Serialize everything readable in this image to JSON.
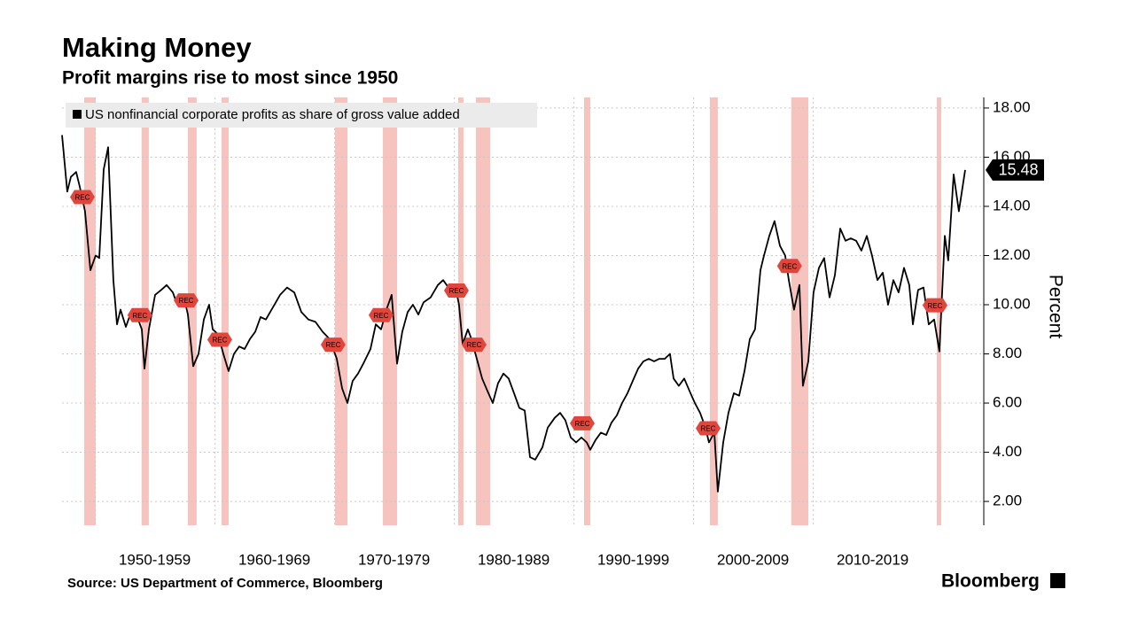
{
  "chart_data": {
    "type": "line",
    "title": "Making Money",
    "subtitle": "Profit margins rise to most since 1950",
    "y_axis_label": "Percent",
    "source": "Source: US Department of Commerce, Bloomberg",
    "brand": "Bloomberg",
    "recession_label": "REC",
    "recessions": [
      [
        1948.5,
        1949.46
      ],
      [
        1953.3,
        1953.9
      ],
      [
        1957.17,
        1957.9
      ],
      [
        1959.98,
        1960.57
      ],
      [
        1969.46,
        1970.5
      ],
      [
        1973.46,
        1974.65
      ],
      [
        1979.76,
        1980.2
      ],
      [
        1981.24,
        1982.43
      ],
      [
        1990.28,
        1990.8
      ],
      [
        2000.8,
        2001.46
      ],
      [
        2007.6,
        2009.02
      ],
      [
        2019.76,
        2020.13
      ]
    ],
    "recession_color": "#f4b8b4",
    "legend_position": "top-left",
    "grid": true,
    "xlim": [
      1946.65,
      2023.54
    ],
    "ylim": [
      1.03,
      18.43
    ],
    "xticks": [
      {
        "value": 1954.4,
        "label": "1950-1959"
      },
      {
        "value": 1964.4,
        "label": "1960-1969"
      },
      {
        "value": 1974.4,
        "label": "1970-1979"
      },
      {
        "value": 1984.4,
        "label": "1980-1989"
      },
      {
        "value": 1994.4,
        "label": "1990-1999"
      },
      {
        "value": 2004.4,
        "label": "2000-2009"
      },
      {
        "value": 2014.4,
        "label": "2010-2019"
      }
    ],
    "yticks": [
      {
        "value": 2,
        "label": "2.00"
      },
      {
        "value": 4,
        "label": "4.00"
      },
      {
        "value": 6,
        "label": "6.00"
      },
      {
        "value": 8,
        "label": "8.00"
      },
      {
        "value": 10,
        "label": "10.00"
      },
      {
        "value": 12,
        "label": "12.00"
      },
      {
        "value": 14,
        "label": "14.00"
      },
      {
        "value": 16,
        "label": "16.00"
      },
      {
        "value": 18,
        "label": "18.00"
      }
    ],
    "series": [
      {
        "name": "US nonfinancial corporate profits as share of gross value added",
        "color": "#000000",
        "x": [
          1946.65,
          1947.09,
          1947.39,
          1947.83,
          1948.13,
          1948.57,
          1949.02,
          1949.46,
          1949.76,
          1950.13,
          1950.5,
          1950.94,
          1951.24,
          1951.54,
          1951.98,
          1952.43,
          1952.94,
          1953.32,
          1953.54,
          1953.91,
          1954.43,
          1954.94,
          1955.39,
          1955.91,
          1956.28,
          1956.8,
          1957.17,
          1957.61,
          1958.06,
          1958.5,
          1958.94,
          1959.24,
          1959.69,
          1960.13,
          1960.57,
          1961.02,
          1961.46,
          1961.91,
          1962.35,
          1962.8,
          1963.24,
          1963.69,
          1964.28,
          1964.87,
          1965.46,
          1966.06,
          1966.65,
          1967.24,
          1967.83,
          1968.43,
          1969.02,
          1969.61,
          1970.06,
          1970.5,
          1970.94,
          1971.39,
          1971.83,
          1972.43,
          1972.87,
          1973.32,
          1973.76,
          1974.2,
          1974.65,
          1975.09,
          1975.54,
          1975.98,
          1976.43,
          1976.87,
          1977.46,
          1978.06,
          1978.5,
          1979.09,
          1979.54,
          1979.83,
          1980.13,
          1980.57,
          1980.87,
          1981.32,
          1981.76,
          1982.2,
          1982.65,
          1983.09,
          1983.54,
          1983.98,
          1984.43,
          1984.87,
          1985.32,
          1985.76,
          1986.2,
          1986.8,
          1987.24,
          1987.83,
          1988.28,
          1988.72,
          1989.17,
          1989.61,
          1990.06,
          1990.5,
          1990.8,
          1991.24,
          1991.69,
          1992.13,
          1992.57,
          1993.02,
          1993.46,
          1993.91,
          1994.35,
          1994.8,
          1995.24,
          1995.69,
          1996.13,
          1996.57,
          1997.02,
          1997.46,
          1997.76,
          1998.2,
          1998.65,
          1999.09,
          1999.54,
          1999.98,
          2000.43,
          2000.72,
          2001.17,
          2001.46,
          2001.91,
          2002.35,
          2002.8,
          2003.24,
          2003.69,
          2004.13,
          2004.57,
          2005.02,
          2005.32,
          2005.76,
          2006.2,
          2006.65,
          2007.09,
          2007.39,
          2007.83,
          2008.28,
          2008.57,
          2009.02,
          2009.46,
          2009.91,
          2010.35,
          2010.8,
          2011.24,
          2011.69,
          2012.13,
          2012.57,
          2013.02,
          2013.46,
          2013.91,
          2014.35,
          2014.8,
          2015.24,
          2015.69,
          2016.13,
          2016.57,
          2017.02,
          2017.46,
          2017.76,
          2018.2,
          2018.65,
          2019.09,
          2019.54,
          2019.98,
          2020.43,
          2020.72,
          2021.17,
          2021.61,
          2022.13
        ],
        "values": [
          16.9,
          14.6,
          15.2,
          15.4,
          14.8,
          13.8,
          11.4,
          12.0,
          11.9,
          15.5,
          16.4,
          11.0,
          9.2,
          9.8,
          9.1,
          9.7,
          9.5,
          9.0,
          7.4,
          9.0,
          10.4,
          10.6,
          10.8,
          10.5,
          10.0,
          10.4,
          9.6,
          7.5,
          8.0,
          9.4,
          10.0,
          9.0,
          8.8,
          8.0,
          7.3,
          8.0,
          8.3,
          8.2,
          8.6,
          8.9,
          9.5,
          9.4,
          9.9,
          10.4,
          10.7,
          10.5,
          9.7,
          9.4,
          9.3,
          8.9,
          8.6,
          7.8,
          6.6,
          6.0,
          6.9,
          7.2,
          7.6,
          8.2,
          9.2,
          9.0,
          9.8,
          10.4,
          7.6,
          8.9,
          9.7,
          10.0,
          9.6,
          10.1,
          10.3,
          10.8,
          11.0,
          10.6,
          10.7,
          10.0,
          8.4,
          9.0,
          8.6,
          7.8,
          7.0,
          6.5,
          6.0,
          6.8,
          7.2,
          7.0,
          6.4,
          5.8,
          5.7,
          3.8,
          3.7,
          4.2,
          5.0,
          5.4,
          5.6,
          5.3,
          4.6,
          4.4,
          4.6,
          4.4,
          4.1,
          4.5,
          4.8,
          4.7,
          5.2,
          5.5,
          6.0,
          6.4,
          6.9,
          7.4,
          7.7,
          7.8,
          7.7,
          7.8,
          7.8,
          8.0,
          7.0,
          6.7,
          7.0,
          6.5,
          6.0,
          5.6,
          5.0,
          4.4,
          4.8,
          2.4,
          4.4,
          5.6,
          6.4,
          6.3,
          7.3,
          8.6,
          9.0,
          11.4,
          12.0,
          12.8,
          13.4,
          12.4,
          12.0,
          11.0,
          9.8,
          10.8,
          6.7,
          7.7,
          10.5,
          11.5,
          11.9,
          10.3,
          11.2,
          13.1,
          12.6,
          12.7,
          12.6,
          12.2,
          12.8,
          12.0,
          11.0,
          11.3,
          10.0,
          11.0,
          10.5,
          11.5,
          10.8,
          9.2,
          10.6,
          10.7,
          9.2,
          9.4,
          8.1,
          12.8,
          11.8,
          15.3,
          13.8,
          15.48
        ]
      }
    ]
  }
}
